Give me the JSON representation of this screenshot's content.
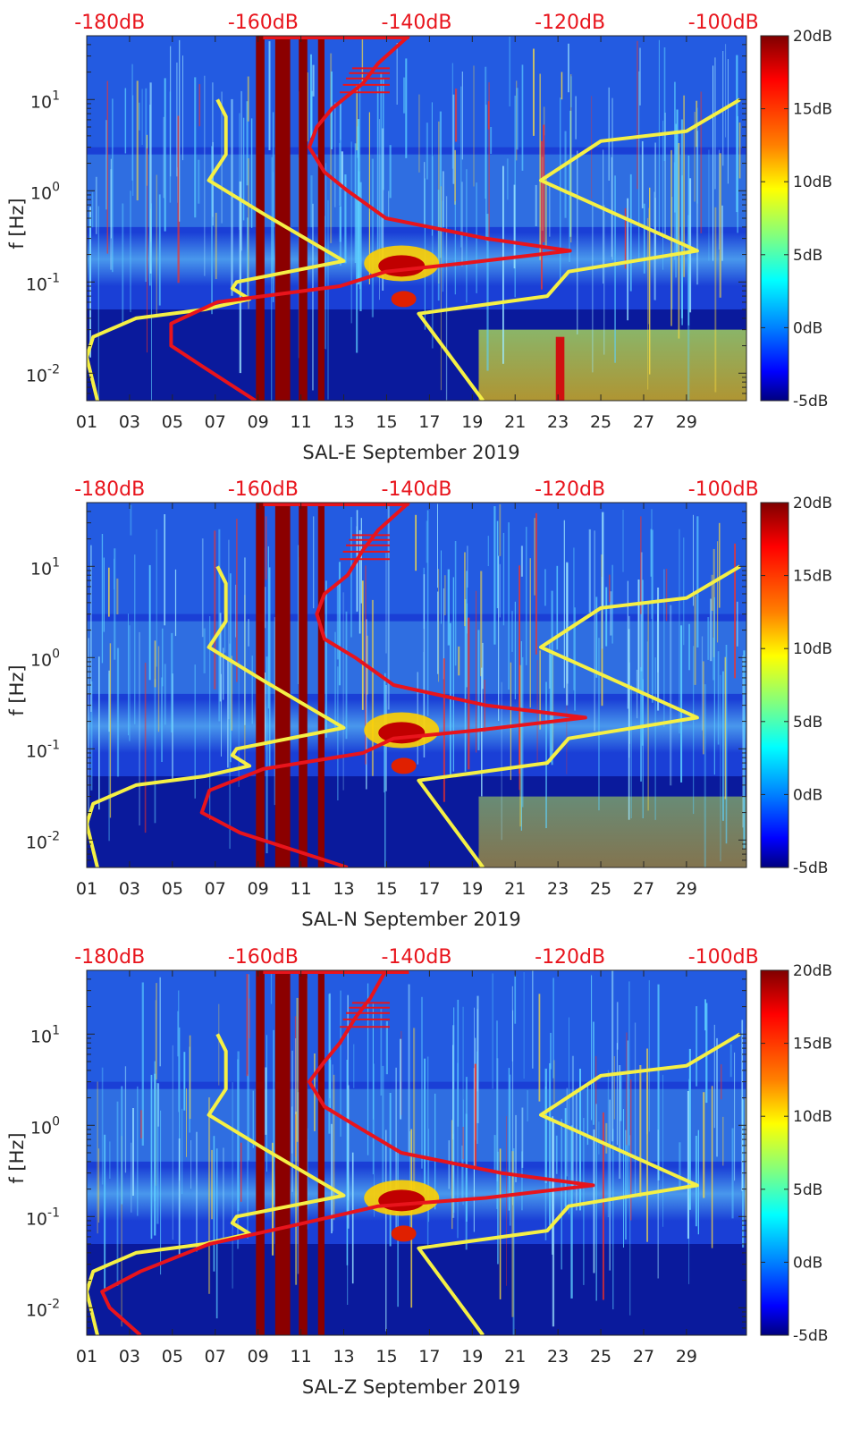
{
  "chart_data": [
    {
      "type": "heatmap",
      "xlabel": "SAL-E September 2019",
      "ylabel": "f [Hz]",
      "top_ticks": [
        "-180dB",
        "-160dB",
        "-140dB",
        "-120dB",
        "-100dB"
      ],
      "x_ticks": [
        "01",
        "03",
        "05",
        "07",
        "09",
        "11",
        "13",
        "15",
        "17",
        "19",
        "21",
        "23",
        "25",
        "27",
        "29"
      ],
      "y_ticks": [
        "10^-2",
        "10^-1",
        "10^0",
        "10^1"
      ],
      "y_scale": "log",
      "ylim": [
        0.005,
        50
      ],
      "xlim": [
        1,
        31.8
      ],
      "colorbar": {
        "ticks": [
          "20dB",
          "15dB",
          "10dB",
          "5dB",
          "0dB",
          "-5dB"
        ],
        "range": [
          -5,
          20
        ],
        "colormap": "jet"
      },
      "gap_bands": [
        [
          8.9,
          9.3
        ],
        [
          9.8,
          10.5
        ],
        [
          10.9,
          11.3
        ],
        [
          11.8,
          12.1
        ]
      ],
      "red_psd_curve": [
        [
          -161,
          0.005
        ],
        [
          -168,
          0.012
        ],
        [
          -172,
          0.02
        ],
        [
          -172,
          0.035
        ],
        [
          -166,
          0.06
        ],
        [
          -150,
          0.09
        ],
        [
          -144,
          0.13
        ],
        [
          -134,
          0.16
        ],
        [
          -120,
          0.22
        ],
        [
          -131,
          0.3
        ],
        [
          -144,
          0.5
        ],
        [
          -149,
          1.0
        ],
        [
          -152,
          1.6
        ],
        [
          -154,
          3.0
        ],
        [
          -153,
          5.0
        ],
        [
          -151,
          8.0
        ],
        [
          -147,
          15.0
        ],
        [
          -145,
          25.0
        ],
        [
          -141,
          50.0
        ]
      ],
      "yellow_left_curve": [
        [
          1.5,
          0.005
        ],
        [
          1.0,
          0.015
        ],
        [
          1.3,
          0.025
        ],
        [
          3.3,
          0.04
        ],
        [
          6.5,
          0.05
        ],
        [
          8.6,
          0.065
        ],
        [
          7.8,
          0.085
        ],
        [
          8.0,
          0.1
        ],
        [
          13.0,
          0.17
        ],
        [
          9.3,
          0.55
        ],
        [
          6.7,
          1.3
        ],
        [
          7.5,
          2.5
        ],
        [
          7.5,
          6.5
        ],
        [
          7.1,
          10.0
        ]
      ],
      "yellow_right_curve": [
        [
          19.5,
          0.005
        ],
        [
          16.5,
          0.045
        ],
        [
          22.5,
          0.07
        ],
        [
          23.5,
          0.13
        ],
        [
          29.5,
          0.22
        ],
        [
          22.2,
          1.3
        ],
        [
          25.0,
          3.5
        ],
        [
          29.0,
          4.5
        ],
        [
          31.5,
          10.0
        ]
      ]
    },
    {
      "type": "heatmap",
      "xlabel": "SAL-N September 2019",
      "ylabel": "f [Hz]",
      "top_ticks": [
        "-180dB",
        "-160dB",
        "-140dB",
        "-120dB",
        "-100dB"
      ],
      "x_ticks": [
        "01",
        "03",
        "05",
        "07",
        "09",
        "11",
        "13",
        "15",
        "17",
        "19",
        "21",
        "23",
        "25",
        "27",
        "29"
      ],
      "y_ticks": [
        "10^-2",
        "10^-1",
        "10^0",
        "10^1"
      ],
      "y_scale": "log",
      "ylim": [
        0.005,
        50
      ],
      "xlim": [
        1,
        31.8
      ],
      "colorbar": {
        "ticks": [
          "20dB",
          "15dB",
          "10dB",
          "5dB",
          "0dB",
          "-5dB"
        ],
        "range": [
          -5,
          20
        ],
        "colormap": "jet"
      },
      "gap_bands": [
        [
          8.9,
          9.3
        ],
        [
          9.8,
          10.5
        ],
        [
          10.9,
          11.3
        ],
        [
          11.8,
          12.1
        ]
      ],
      "red_psd_curve": [
        [
          -149,
          0.005
        ],
        [
          -163,
          0.012
        ],
        [
          -168,
          0.02
        ],
        [
          -167,
          0.035
        ],
        [
          -160,
          0.06
        ],
        [
          -147,
          0.09
        ],
        [
          -143,
          0.13
        ],
        [
          -132,
          0.16
        ],
        [
          -118,
          0.22
        ],
        [
          -131,
          0.3
        ],
        [
          -143,
          0.5
        ],
        [
          -148,
          1.0
        ],
        [
          -152,
          1.6
        ],
        [
          -153,
          3.0
        ],
        [
          -152,
          5.0
        ],
        [
          -149,
          8.0
        ],
        [
          -147,
          15.0
        ],
        [
          -145,
          25.0
        ],
        [
          -141,
          50.0
        ]
      ],
      "yellow_left_curve": [
        [
          1.5,
          0.005
        ],
        [
          1.0,
          0.015
        ],
        [
          1.3,
          0.025
        ],
        [
          3.3,
          0.04
        ],
        [
          6.5,
          0.05
        ],
        [
          8.6,
          0.065
        ],
        [
          7.8,
          0.085
        ],
        [
          8.0,
          0.1
        ],
        [
          13.0,
          0.17
        ],
        [
          9.3,
          0.55
        ],
        [
          6.7,
          1.3
        ],
        [
          7.5,
          2.5
        ],
        [
          7.5,
          6.5
        ],
        [
          7.1,
          10.0
        ]
      ],
      "yellow_right_curve": [
        [
          19.5,
          0.005
        ],
        [
          16.5,
          0.045
        ],
        [
          22.5,
          0.07
        ],
        [
          23.5,
          0.13
        ],
        [
          29.5,
          0.22
        ],
        [
          22.2,
          1.3
        ],
        [
          25.0,
          3.5
        ],
        [
          29.0,
          4.5
        ],
        [
          31.5,
          10.0
        ]
      ]
    },
    {
      "type": "heatmap",
      "xlabel": "SAL-Z September 2019",
      "ylabel": "f [Hz]",
      "top_ticks": [
        "-180dB",
        "-160dB",
        "-140dB",
        "-120dB",
        "-100dB"
      ],
      "x_ticks": [
        "01",
        "03",
        "05",
        "07",
        "09",
        "11",
        "13",
        "15",
        "17",
        "19",
        "21",
        "23",
        "25",
        "27",
        "29"
      ],
      "y_ticks": [
        "10^-2",
        "10^-1",
        "10^0",
        "10^1"
      ],
      "y_scale": "log",
      "ylim": [
        0.005,
        50
      ],
      "xlim": [
        1,
        31.8
      ],
      "colorbar": {
        "ticks": [
          "20dB",
          "15dB",
          "10dB",
          "5dB",
          "0dB",
          "-5dB"
        ],
        "range": [
          -5,
          20
        ],
        "colormap": "jet"
      },
      "gap_bands": [
        [
          8.9,
          9.3
        ],
        [
          9.8,
          10.5
        ],
        [
          10.9,
          11.3
        ],
        [
          11.8,
          12.1
        ]
      ],
      "red_psd_curve": [
        [
          -176,
          0.005
        ],
        [
          -180,
          0.01
        ],
        [
          -181,
          0.015
        ],
        [
          -176,
          0.025
        ],
        [
          -167,
          0.05
        ],
        [
          -156,
          0.08
        ],
        [
          -145,
          0.13
        ],
        [
          -131,
          0.16
        ],
        [
          -117,
          0.22
        ],
        [
          -129,
          0.3
        ],
        [
          -142,
          0.5
        ],
        [
          -148,
          1.0
        ],
        [
          -152,
          1.6
        ],
        [
          -154,
          3.0
        ],
        [
          -152,
          5.0
        ],
        [
          -150,
          8.0
        ],
        [
          -148,
          15.0
        ],
        [
          -146,
          25.0
        ],
        [
          -144,
          50.0
        ]
      ],
      "yellow_left_curve": [
        [
          1.5,
          0.005
        ],
        [
          1.0,
          0.015
        ],
        [
          1.3,
          0.025
        ],
        [
          3.3,
          0.04
        ],
        [
          6.5,
          0.05
        ],
        [
          8.6,
          0.065
        ],
        [
          7.8,
          0.085
        ],
        [
          8.0,
          0.1
        ],
        [
          13.0,
          0.17
        ],
        [
          9.3,
          0.55
        ],
        [
          6.7,
          1.3
        ],
        [
          7.5,
          2.5
        ],
        [
          7.5,
          6.5
        ],
        [
          7.1,
          10.0
        ]
      ],
      "yellow_right_curve": [
        [
          19.5,
          0.005
        ],
        [
          16.5,
          0.045
        ],
        [
          22.5,
          0.07
        ],
        [
          23.5,
          0.13
        ],
        [
          29.5,
          0.22
        ],
        [
          22.2,
          1.3
        ],
        [
          25.0,
          3.5
        ],
        [
          29.0,
          4.5
        ],
        [
          31.5,
          10.0
        ]
      ]
    }
  ]
}
